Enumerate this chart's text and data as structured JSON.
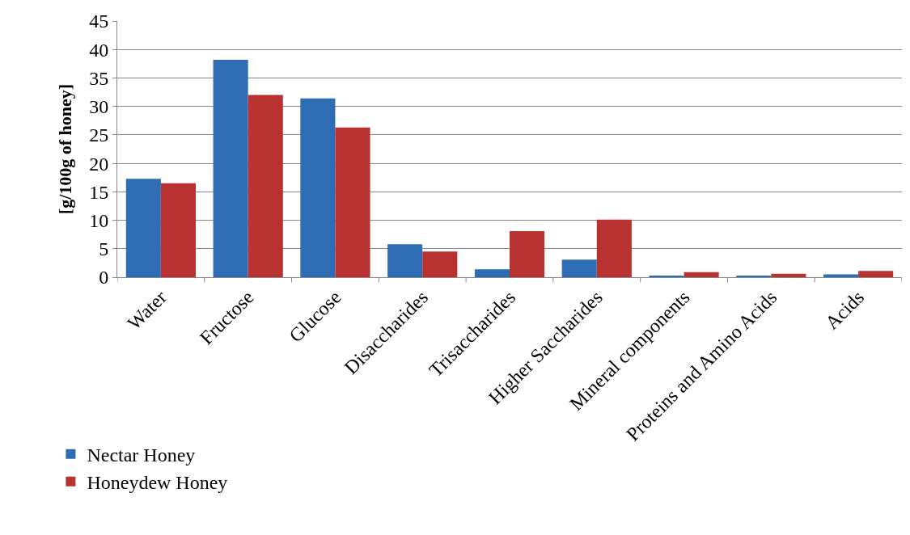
{
  "chart_data": {
    "type": "bar",
    "ylabel": "[g/100g of honey]",
    "categories": [
      "Water",
      "Fructose",
      "Glucose",
      "Disaccharides",
      "Trisaccharides",
      "Higher Saccharides",
      "Mineral components",
      "Proteins and Amino Acids",
      "Acids"
    ],
    "series": [
      {
        "name": "Nectar Honey",
        "color": "#2e6db4",
        "values": [
          17.3,
          38.2,
          31.4,
          5.8,
          1.4,
          3.1,
          0.2,
          0.3,
          0.5
        ]
      },
      {
        "name": "Honeydew Honey",
        "color": "#b83232",
        "values": [
          16.5,
          32.0,
          26.3,
          4.5,
          8.1,
          10.1,
          0.9,
          0.6,
          1.1
        ]
      }
    ],
    "ylim": [
      0,
      45
    ],
    "yticks": [
      0,
      5,
      10,
      15,
      20,
      25,
      30,
      35,
      40,
      45
    ],
    "grid": "y",
    "legend": "bottom left"
  }
}
